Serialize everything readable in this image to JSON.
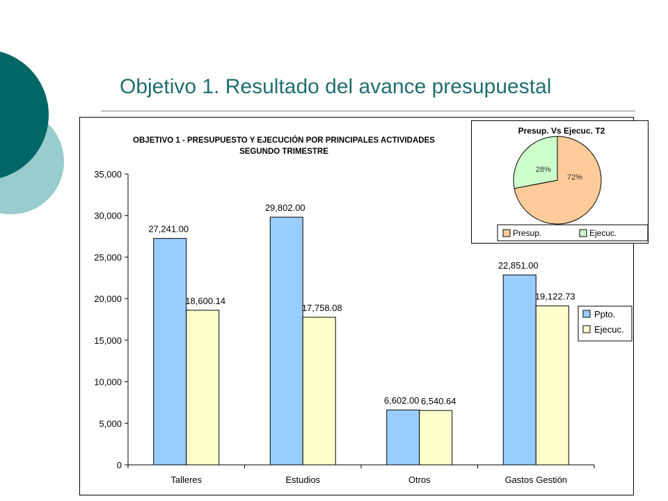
{
  "slide": {
    "title": "Objetivo 1. Resultado del avance presupuestal"
  },
  "colors": {
    "title": "#1f6e6e",
    "deco_dark": "#006666",
    "deco_light": "#99cccc",
    "ppto": "#99ccff",
    "ejecuc": "#ffffcc",
    "pie_presup": "#ffcc99",
    "pie_ejecuc": "#ccffcc"
  },
  "chart_data": [
    {
      "type": "bar",
      "title": "OBJETIVO 1 - PRESUPUESTO Y EJECUCIÓN POR PRINCIPALES ACTIVIDADES",
      "subtitle": "SEGUNDO TRIMESTRE",
      "categories": [
        "Talleres",
        "Estudios",
        "Otros",
        "Gastos Gestión"
      ],
      "series": [
        {
          "name": "Ppto.",
          "values": [
            27241.0,
            29802.0,
            6602.0,
            22851.0
          ],
          "labels": [
            "27,241.00",
            "29,802.00",
            "6,602.00",
            "22,851.00"
          ]
        },
        {
          "name": "Ejecuc.",
          "values": [
            18600.14,
            17758.08,
            6540.64,
            19122.73
          ],
          "labels": [
            "18,600.14",
            "17,758.08",
            "6,540.64",
            "19,122.73"
          ]
        }
      ],
      "ylim": [
        0,
        35000
      ],
      "yticks": [
        0,
        5000,
        10000,
        15000,
        20000,
        25000,
        30000,
        35000
      ],
      "ytick_labels": [
        "0",
        "5,000",
        "10,000",
        "15,000",
        "20,000",
        "25,000",
        "30,000",
        "35,000"
      ],
      "xlabel": "",
      "ylabel": "",
      "grid": false,
      "legend": "right"
    },
    {
      "type": "pie",
      "title": "Presup. Vs Ejecuc. T2",
      "series": [
        {
          "name": "Presup.",
          "percent": 72,
          "label": "72%"
        },
        {
          "name": "Ejecuc.",
          "percent": 28,
          "label": "28%"
        }
      ],
      "legend": "bottom"
    }
  ]
}
